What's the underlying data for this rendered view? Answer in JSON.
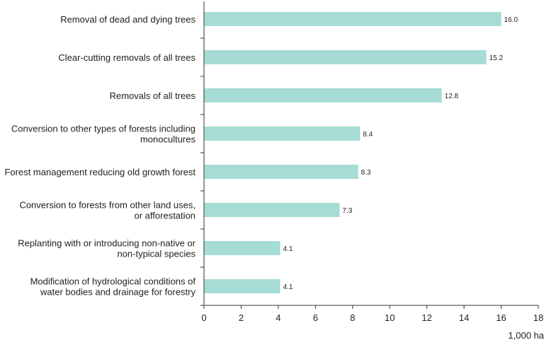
{
  "chart_data": {
    "type": "bar",
    "orientation": "horizontal",
    "categories": [
      [
        "Removal of dead and dying trees"
      ],
      [
        "Clear-cutting removals of all trees"
      ],
      [
        "Removals of all trees"
      ],
      [
        "Conversion to other types of forests including",
        "monocultures"
      ],
      [
        "Forest management reducing old growth forest"
      ],
      [
        "Conversion to forests from other land uses,",
        "or afforestation"
      ],
      [
        "Replanting with or introducing non-native or",
        "non-typical species"
      ],
      [
        "Modification of hydrological conditions of",
        "water bodies and drainage for forestry"
      ]
    ],
    "values": [
      16.0,
      15.2,
      12.8,
      8.4,
      8.3,
      7.3,
      4.1,
      4.1
    ],
    "value_labels": [
      "16.0",
      "15.2",
      "12.8",
      "8.4",
      "8.3",
      "7.3",
      "4.1",
      "4.1"
    ],
    "xlim": [
      0,
      18
    ],
    "xticks": [
      0,
      2,
      4,
      6,
      8,
      10,
      12,
      14,
      16,
      18
    ],
    "xlabel": "1,000 ha",
    "ylabel": "",
    "title": "",
    "grid": false,
    "colors": {
      "bar": "#a5dcd5",
      "axis": "#333333"
    }
  }
}
